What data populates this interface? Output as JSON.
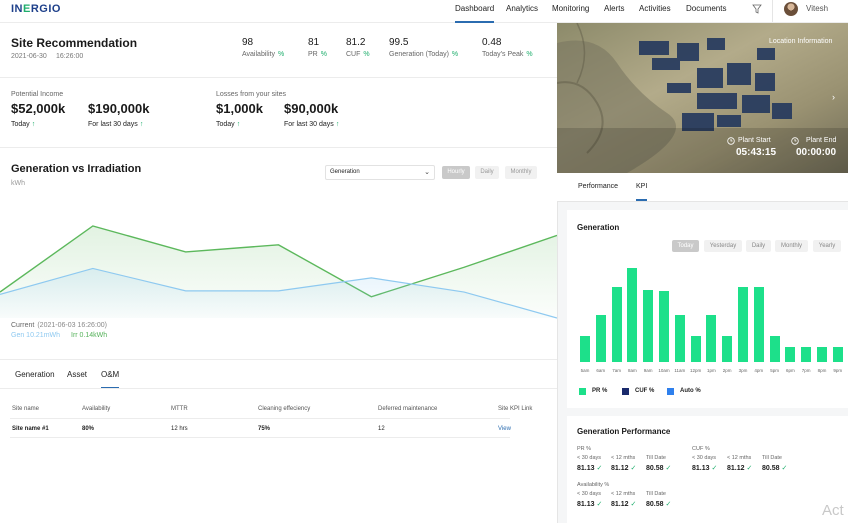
{
  "header": {
    "logo_prefix": "IN",
    "logo_accent": "E",
    "logo_suffix": "RGIO",
    "nav": [
      "Dashboard",
      "Analytics",
      "Monitoring",
      "Alerts",
      "Activities",
      "Documents"
    ],
    "active_nav": "Dashboard",
    "user": "Vitesh",
    "filter_icon": "filter-icon"
  },
  "site": {
    "title": "Site Recommendation",
    "date": "2021-06-30",
    "time": "16:26:00",
    "kpis": [
      {
        "value": "98",
        "label": "Availability",
        "unit": "%"
      },
      {
        "value": "81",
        "label": "PR",
        "unit": "%"
      },
      {
        "value": "81.2",
        "label": "CUF",
        "unit": "%"
      },
      {
        "value": "99.5",
        "label": "Generation (Today)",
        "unit": "%"
      },
      {
        "value": "0.48",
        "label": "Today's Peak",
        "unit": "%"
      }
    ]
  },
  "income": {
    "potential_label": "Potential Income",
    "losses_label": "Losses from your sites",
    "items": [
      {
        "value": "$52,000k",
        "sub": "Today"
      },
      {
        "value": "$190,000k",
        "sub": "For last 30 days"
      },
      {
        "value": "$1,000k",
        "sub": "Today"
      },
      {
        "value": "$90,000k",
        "sub": "For last 30 days"
      }
    ],
    "up_arrow": "↑"
  },
  "gen_chart": {
    "title": "Generation vs Irradiation",
    "unit": "kWh",
    "select_value": "Generation",
    "ranges": [
      "Hourly",
      "Daily",
      "Monthly"
    ],
    "active_range": "Hourly",
    "current_label": "Current",
    "current_ts": "(2021-06-03  16:26:00)",
    "gen_label": "Gen 10.21mWh",
    "irr_label": "Irr 0.14kWh",
    "colors": {
      "generation": "#5cb85c",
      "irradiation": "#8ec9f0"
    }
  },
  "chart_data": [
    {
      "type": "area",
      "x": [
        0,
        1,
        2,
        3,
        4,
        5,
        6
      ],
      "series": [
        {
          "name": "Gen",
          "values": [
            0.22,
            0.78,
            0.56,
            0.62,
            0.18,
            0.43,
            0.7
          ]
        },
        {
          "name": "Irr",
          "values": [
            0.2,
            0.42,
            0.23,
            0.23,
            0.34,
            0.22,
            0.0
          ]
        }
      ],
      "ylim": [
        0,
        1
      ],
      "grid": false
    },
    {
      "type": "bar",
      "categories": [
        "5am",
        "6am",
        "7am",
        "8am",
        "9am",
        "10am",
        "11am",
        "12pm",
        "1pm",
        "2pm",
        "3pm",
        "4pm",
        "5pm",
        "6pm",
        "7pm",
        "8pm",
        "9pm"
      ],
      "values": [
        26,
        47,
        75,
        94,
        72,
        71,
        47,
        26,
        47,
        26,
        75,
        75,
        26,
        15,
        15,
        15,
        15
      ],
      "ylim": [
        0,
        100
      ],
      "series_name": "PR %",
      "color": "#1de08a"
    }
  ],
  "tabs": [
    "Generation",
    "Asset",
    "O&M"
  ],
  "active_tab": "O&M",
  "table": {
    "headers": [
      "Site name",
      "Availability",
      "MTTR",
      "Cleaning effeciency",
      "Deferred maintenance",
      "Site KPI Link"
    ],
    "rows": [
      [
        "Site name #1",
        "80%",
        "12 hrs",
        "75%",
        "12",
        "View"
      ]
    ]
  },
  "right": {
    "location_info": "Location Information",
    "plant_start_label": "Plant Start",
    "plant_start_time": "05:43:15",
    "plant_end_label": "Plant End",
    "plant_end_time": "00:00:00",
    "tabs": [
      "Performance",
      "KPI"
    ],
    "active_tab": "KPI",
    "generation_title": "Generation",
    "ranges": [
      "Today",
      "Yesterday",
      "Daily",
      "Monthly",
      "Yearly"
    ],
    "active_range": "Today",
    "legend": [
      {
        "label": "PR %",
        "color": "#1de08a"
      },
      {
        "label": "CUF %",
        "color": "#1a2a6c"
      },
      {
        "label": "Auto %",
        "color": "#2f80ed"
      }
    ],
    "perf_title": "Generation Performance",
    "perf_groups": [
      {
        "label": "PR %",
        "cols": [
          {
            "label": "< 30 days",
            "value": "81.13"
          },
          {
            "label": "< 12 mths",
            "value": "81.12"
          },
          {
            "label": "Till Date",
            "value": "80.58"
          }
        ]
      },
      {
        "label": "CUF %",
        "cols": [
          {
            "label": "< 30 days",
            "value": "81.13"
          },
          {
            "label": "< 12 mths",
            "value": "81.12"
          },
          {
            "label": "Till Date",
            "value": "80.58"
          }
        ]
      },
      {
        "label": "Availability %",
        "cols": [
          {
            "label": "< 30 days",
            "value": "81.13"
          },
          {
            "label": "< 12 mths",
            "value": "81.12"
          },
          {
            "label": "Till Date",
            "value": "80.58"
          }
        ]
      }
    ],
    "check": "✓"
  },
  "watermark": "Act"
}
